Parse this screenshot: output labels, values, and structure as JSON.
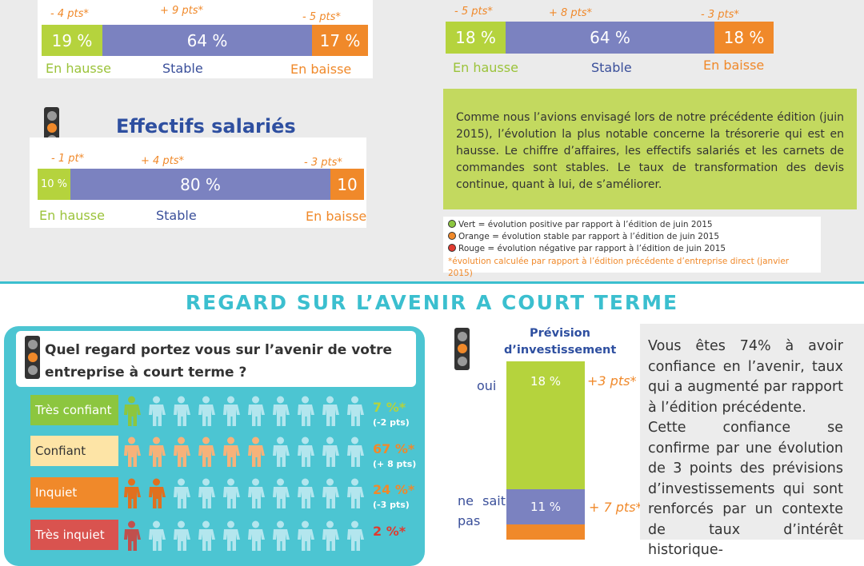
{
  "top_left": {
    "segments": [
      "19 %",
      "64 %",
      "17 %"
    ],
    "changes": [
      "- 4 pts*",
      "+ 9 pts*",
      "- 5 pts*"
    ],
    "labels": [
      "En hausse",
      "Stable",
      "En baisse"
    ]
  },
  "top_right": {
    "segments": [
      "18 %",
      "64 %",
      "18 %"
    ],
    "changes": [
      "- 5 pts*",
      "+ 8 pts*",
      "- 3 pts*"
    ],
    "labels": [
      "En hausse",
      "Stable",
      "En baisse"
    ]
  },
  "effectifs": {
    "title": "Effectifs salariés",
    "segments": [
      "10 %",
      "80 %",
      "10"
    ],
    "changes": [
      "- 1 pt*",
      "+ 4 pts*",
      "- 3 pts*"
    ],
    "labels": [
      "En hausse",
      "Stable",
      "En baisse"
    ]
  },
  "summary": "Comme nous l’avions envisagé lors de notre précédente édition (juin 2015), l’évolution la plus notable concerne la trésorerie qui est en hausse. Le chiffre d’affaires, les effectifs salariés et les carnets de commandes sont stables. Le taux de transformation des devis continue, quant à lui, de s’améliorer.",
  "legend": {
    "items": [
      "Vert = évolution positive par rapport à l’édition de juin 2015",
      "Orange = évolution stable par rapport à l’édition de juin 2015",
      "Rouge = évolution négative par rapport à l’édition de juin 2015"
    ],
    "note": "*évolution calculée par rapport à l’édition précédente d’entreprise direct (janvier 2015)"
  },
  "section_title": "REGARD SUR L’AVENIR A COURT TERME",
  "question": "Quel regard portez vous sur l’avenir de votre entreprise à court terme ?",
  "answers": [
    {
      "label": "Très confiant",
      "value": "7 %*",
      "change": "(-2 pts)"
    },
    {
      "label": "Confiant",
      "value": "67 %*",
      "change": "(+ 8 pts)"
    },
    {
      "label": "Inquiet",
      "value": "24 %*",
      "change": "(-3 pts)"
    },
    {
      "label": "Très inquiet",
      "value": "2 %*"
    }
  ],
  "investment": {
    "title": "Prévision d’investissement",
    "rows": [
      {
        "label": "oui",
        "value": "18 %",
        "change": "+3 pts*"
      },
      {
        "label": "ne sait pas",
        "value": "11 %",
        "change": "+ 7 pts*"
      }
    ]
  },
  "commentary": [
    "Vous êtes 74% à avoir confiance en l’avenir, taux qui a augmenté par rapport à l’édition précédente.",
    "Cette confiance se confirme par une évolution de 3 points des prévisions d’in­vestissements qui sont ren­forcés par un contexte de taux d’intérêt historique-"
  ]
}
